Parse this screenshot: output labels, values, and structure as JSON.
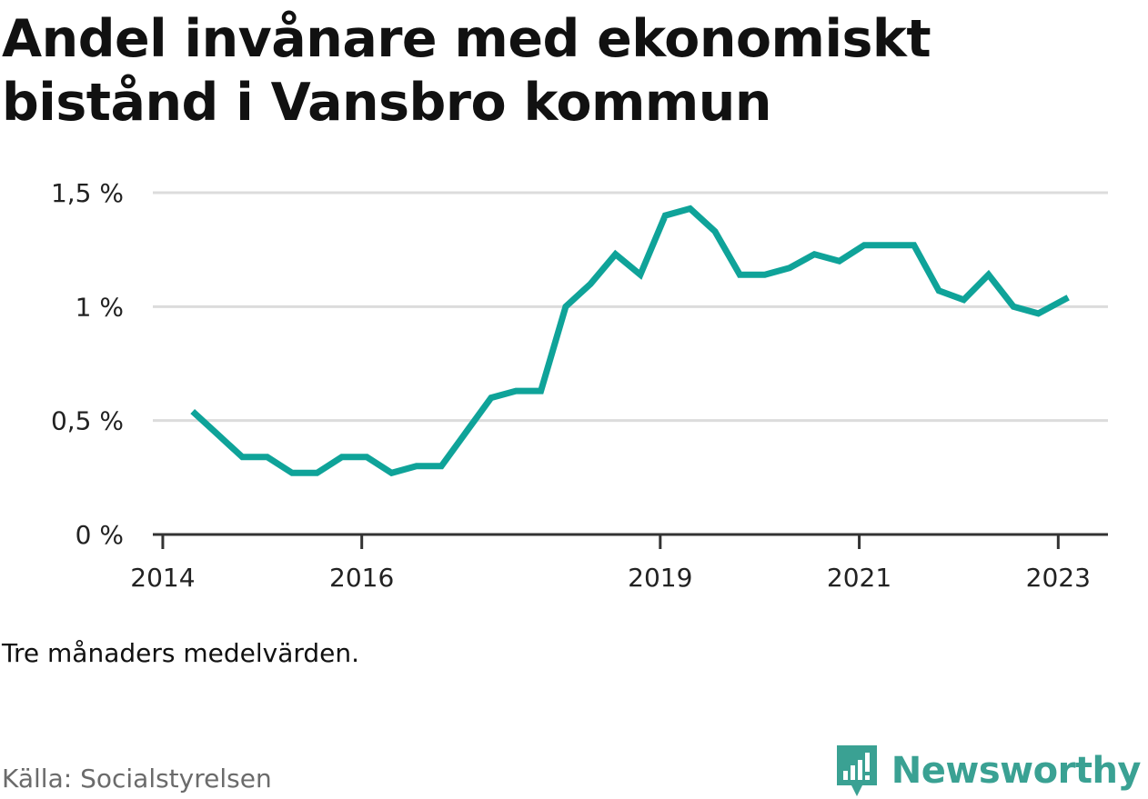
{
  "title": "Andel invånare med ekonomiskt bistånd i Vansbro kommun",
  "note": "Tre månaders medelvärden.",
  "source": "Källa: Socialstyrelsen",
  "brand": {
    "name": "Newsworthy",
    "icon": "newsworthy-logo-icon"
  },
  "colors": {
    "line": "#0fa399",
    "grid": "#dcdcdc",
    "axis": "#333333",
    "brand": "#3aa193"
  },
  "chart_data": {
    "type": "line",
    "y_tick_labels": [
      "0 %",
      "0,5 %",
      "1 %",
      "1,5 %"
    ],
    "y_ticks": [
      0,
      0.5,
      1.0,
      1.5
    ],
    "ylim": [
      0,
      1.5
    ],
    "x_tick_labels": [
      "2014",
      "2016",
      "2019",
      "2021",
      "2023"
    ],
    "x_ticks": [
      2014.0,
      2016.0,
      2019.0,
      2021.0,
      2023.0
    ],
    "xlim": [
      2013.9,
      2023.5
    ],
    "grid": true,
    "legend": "none",
    "series": [
      {
        "x": [
          2014.3,
          2014.55,
          2014.8,
          2015.05,
          2015.3,
          2015.55,
          2015.8,
          2016.05,
          2016.3,
          2016.55,
          2016.8,
          2017.05,
          2017.3,
          2017.55,
          2017.8,
          2018.05,
          2018.3,
          2018.55,
          2018.8,
          2019.05,
          2019.3,
          2019.55,
          2019.8,
          2020.05,
          2020.3,
          2020.55,
          2020.8,
          2021.05,
          2021.3,
          2021.55,
          2021.8,
          2022.05,
          2022.3,
          2022.55,
          2022.8,
          2023.1
        ],
        "values": [
          0.54,
          0.44,
          0.34,
          0.34,
          0.27,
          0.27,
          0.34,
          0.34,
          0.27,
          0.3,
          0.3,
          0.45,
          0.6,
          0.63,
          0.63,
          1.0,
          1.1,
          1.23,
          1.14,
          1.4,
          1.43,
          1.33,
          1.14,
          1.14,
          1.17,
          1.23,
          1.2,
          1.27,
          1.27,
          1.27,
          1.07,
          1.03,
          1.14,
          1.0,
          0.97,
          1.04
        ]
      }
    ]
  }
}
